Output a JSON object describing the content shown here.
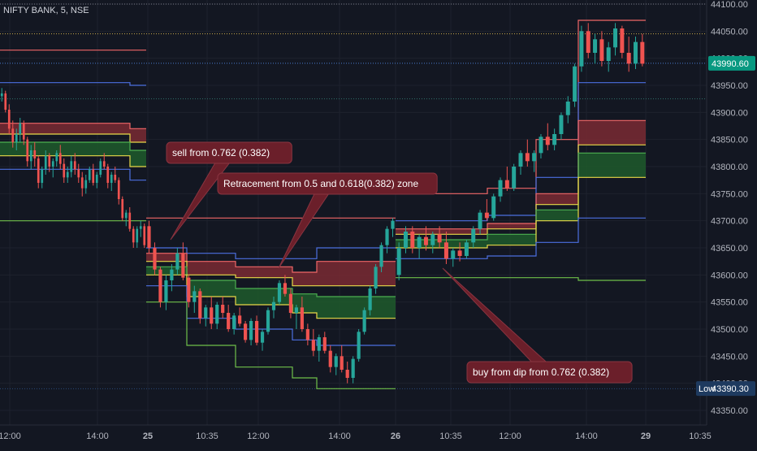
{
  "chart_data": {
    "type": "candlestick",
    "title": "NIFTY BANK, 5, NSE",
    "y_axis": {
      "range": [
        43310,
        44125
      ],
      "ticks": [
        43350,
        43400,
        43450,
        43500,
        43550,
        43600,
        43650,
        43700,
        43750,
        43800,
        43850,
        43900,
        43950,
        44000,
        44050,
        44100
      ],
      "tick_labels": [
        "43350.00",
        "43400.00",
        "43450.00",
        "43500.00",
        "43550.00",
        "43600.00",
        "43650.00",
        "43700.00",
        "43750.00",
        "43800.00",
        "43850.00",
        "43900.00",
        "43950.00",
        "44000.00",
        "44050.00",
        "44100.00"
      ],
      "position": "right"
    },
    "x_axis": {
      "tick_labels": [
        "12:00",
        "14:00",
        "25",
        "10:35",
        "12:00",
        "14:00",
        "26",
        "10:35",
        "12:00",
        "14:00",
        "29",
        "10:35"
      ],
      "bold_labels": [
        "25",
        "26",
        "29"
      ]
    },
    "price_badge": {
      "value": "43990.60",
      "color": "#089981"
    },
    "low_badge": {
      "label": "Low",
      "value": "43390.30",
      "color": "#1e3a5f"
    },
    "colors": {
      "up": "#26a69a",
      "down": "#ef5350",
      "red_zone": "#7a2a33",
      "green_zone": "#1f5a2c"
    },
    "sessions": [
      {
        "start": 0,
        "end": 180,
        "levels": {
          "top_red": null,
          "blue_hi": 43950,
          "red": 43870,
          "yellow": 43845,
          "green": 43830,
          "yellow_low": 43800,
          "blue_lo": 43775,
          "green_low": 43700
        },
        "extra_red": 44015,
        "candles": [
          [
            43930,
            43945,
            43920,
            43935
          ],
          [
            43935,
            43940,
            43900,
            43905
          ],
          [
            43905,
            43915,
            43860,
            43870
          ],
          [
            43870,
            43885,
            43835,
            43845
          ],
          [
            43845,
            43870,
            43830,
            43860
          ],
          [
            43860,
            43890,
            43845,
            43880
          ],
          [
            43880,
            43885,
            43840,
            43850
          ],
          [
            43850,
            43855,
            43800,
            43810
          ],
          [
            43810,
            43840,
            43795,
            43830
          ],
          [
            43830,
            43845,
            43800,
            43815
          ],
          [
            43815,
            43820,
            43760,
            43770
          ],
          [
            43770,
            43800,
            43760,
            43795
          ],
          [
            43795,
            43830,
            43785,
            43820
          ],
          [
            43820,
            43825,
            43790,
            43800
          ],
          [
            43800,
            43815,
            43780,
            43810
          ],
          [
            43810,
            43830,
            43800,
            43825
          ],
          [
            43825,
            43840,
            43795,
            43805
          ],
          [
            43805,
            43815,
            43770,
            43780
          ],
          [
            43780,
            43800,
            43770,
            43790
          ],
          [
            43790,
            43820,
            43780,
            43810
          ],
          [
            43810,
            43825,
            43785,
            43795
          ],
          [
            43795,
            43805,
            43770,
            43780
          ],
          [
            43780,
            43790,
            43745,
            43760
          ],
          [
            43760,
            43785,
            43750,
            43775
          ],
          [
            43775,
            43800,
            43770,
            43795
          ],
          [
            43795,
            43805,
            43765,
            43770
          ],
          [
            43770,
            43790,
            43760,
            43785
          ],
          [
            43785,
            43815,
            43780,
            43810
          ],
          [
            43810,
            43825,
            43795,
            43800
          ],
          [
            43800,
            43805,
            43760,
            43770
          ],
          [
            43770,
            43790,
            43755,
            43785
          ],
          [
            43785,
            43800,
            43770,
            43775
          ],
          [
            43775,
            43780,
            43730,
            43740
          ],
          [
            43740,
            43745,
            43700,
            43705
          ],
          [
            43705,
            43720,
            43690,
            43715
          ],
          [
            43715,
            43725,
            43680,
            43685
          ],
          [
            43685,
            43690,
            43650,
            43660
          ],
          [
            43660,
            43690,
            43650,
            43685
          ],
          [
            43685,
            43700,
            43670,
            43690
          ],
          [
            43690,
            43695,
            43650,
            43655
          ]
        ]
      },
      {
        "start": 180,
        "end": 487,
        "levels": {
          "top_red": 43705,
          "blue_hi": 43650,
          "red": 43625,
          "yellow": 43580,
          "green": 43560,
          "yellow_low": 43520,
          "blue_lo": 43470,
          "green_low": 43390
        },
        "candles": [
          [
            43690,
            43700,
            43640,
            43650
          ],
          [
            43650,
            43660,
            43600,
            43610
          ],
          [
            43610,
            43615,
            43540,
            43550
          ],
          [
            43550,
            43600,
            43535,
            43590
          ],
          [
            43590,
            43620,
            43570,
            43610
          ],
          [
            43610,
            43650,
            43600,
            43640
          ],
          [
            43640,
            43660,
            43590,
            43595
          ],
          [
            43595,
            43600,
            43540,
            43550
          ],
          [
            43550,
            43580,
            43530,
            43570
          ],
          [
            43570,
            43575,
            43510,
            43520
          ],
          [
            43520,
            43545,
            43505,
            43540
          ],
          [
            43540,
            43560,
            43500,
            43510
          ],
          [
            43510,
            43550,
            43500,
            43545
          ],
          [
            43545,
            43560,
            43520,
            43530
          ],
          [
            43530,
            43545,
            43495,
            43500
          ],
          [
            43500,
            43530,
            43490,
            43525
          ],
          [
            43525,
            43540,
            43505,
            43510
          ],
          [
            43510,
            43515,
            43475,
            43480
          ],
          [
            43480,
            43520,
            43470,
            43515
          ],
          [
            43515,
            43525,
            43470,
            43475
          ],
          [
            43475,
            43500,
            43460,
            43495
          ],
          [
            43495,
            43540,
            43490,
            43535
          ],
          [
            43535,
            43560,
            43520,
            43550
          ],
          [
            43550,
            43590,
            43545,
            43585
          ],
          [
            43585,
            43600,
            43560,
            43565
          ],
          [
            43565,
            43575,
            43520,
            43530
          ],
          [
            43530,
            43545,
            43500,
            43540
          ],
          [
            43540,
            43560,
            43495,
            43500
          ],
          [
            43500,
            43510,
            43470,
            43480
          ],
          [
            43480,
            43500,
            43450,
            43460
          ],
          [
            43460,
            43490,
            43440,
            43485
          ],
          [
            43485,
            43495,
            43455,
            43460
          ],
          [
            43460,
            43470,
            43420,
            43430
          ],
          [
            43430,
            43455,
            43415,
            43450
          ],
          [
            43450,
            43470,
            43420,
            43425
          ],
          [
            43425,
            43440,
            43400,
            43410
          ],
          [
            43410,
            43450,
            43400,
            43445
          ],
          [
            43445,
            43500,
            43440,
            43495
          ],
          [
            43495,
            43540,
            43490,
            43535
          ],
          [
            43535,
            43580,
            43525,
            43575
          ],
          [
            43575,
            43620,
            43565,
            43615
          ],
          [
            43615,
            43660,
            43605,
            43655
          ],
          [
            43655,
            43690,
            43640,
            43685
          ],
          [
            43685,
            43705,
            43670,
            43700
          ]
        ]
      },
      {
        "start": 487,
        "end": 795,
        "levels": {
          "top_red": 44070,
          "blue_hi": 43955,
          "red": 43885,
          "yellow": 43840,
          "green": 43825,
          "yellow_low": 43780,
          "blue_lo": 43705,
          "green_low": 43590
        },
        "rising": [
          {
            "x": 487,
            "top_red": 43750,
            "blue_hi": 43700,
            "red": 43685,
            "yellow": 43675,
            "green": 43665,
            "yellow_low": 43650,
            "blue_lo": 43630,
            "green_low": 43595
          },
          {
            "x": 600,
            "top_red": 43760,
            "blue_hi": 43710,
            "red": 43695,
            "yellow": 43685,
            "green": 43675,
            "yellow_low": 43655,
            "blue_lo": 43635,
            "green_low": 43595
          },
          {
            "x": 660,
            "top_red": 43850,
            "blue_hi": 43780,
            "red": 43750,
            "yellow": 43730,
            "green": 43720,
            "yellow_low": 43700,
            "blue_lo": 43660,
            "green_low": 43595
          },
          {
            "x": 712,
            "top_red": 44070,
            "blue_hi": 43955,
            "red": 43885,
            "yellow": 43840,
            "green": 43825,
            "yellow_low": 43780,
            "blue_lo": 43705,
            "green_low": 43590
          }
        ],
        "candles": [
          [
            43600,
            43660,
            43590,
            43650
          ],
          [
            43650,
            43690,
            43640,
            43680
          ],
          [
            43680,
            43690,
            43640,
            43650
          ],
          [
            43650,
            43675,
            43630,
            43670
          ],
          [
            43670,
            43690,
            43645,
            43655
          ],
          [
            43655,
            43680,
            43640,
            43675
          ],
          [
            43675,
            43690,
            43650,
            43660
          ],
          [
            43660,
            43680,
            43620,
            43630
          ],
          [
            43630,
            43650,
            43615,
            43645
          ],
          [
            43645,
            43660,
            43625,
            43635
          ],
          [
            43635,
            43665,
            43630,
            43660
          ],
          [
            43660,
            43690,
            43650,
            43685
          ],
          [
            43685,
            43720,
            43675,
            43715
          ],
          [
            43715,
            43740,
            43700,
            43705
          ],
          [
            43705,
            43750,
            43700,
            43745
          ],
          [
            43745,
            43780,
            43735,
            43775
          ],
          [
            43775,
            43800,
            43755,
            43760
          ],
          [
            43760,
            43805,
            43755,
            43800
          ],
          [
            43800,
            43830,
            43785,
            43825
          ],
          [
            43825,
            43850,
            43800,
            43810
          ],
          [
            43810,
            43830,
            43790,
            43825
          ],
          [
            43825,
            43860,
            43815,
            43855
          ],
          [
            43855,
            43880,
            43830,
            43840
          ],
          [
            43840,
            43870,
            43830,
            43860
          ],
          [
            43860,
            43900,
            43850,
            43895
          ],
          [
            43895,
            43930,
            43880,
            43920
          ],
          [
            43920,
            43990,
            43910,
            43985
          ],
          [
            43985,
            44060,
            43975,
            44050
          ],
          [
            44050,
            44065,
            44000,
            44010
          ],
          [
            44010,
            44045,
            43990,
            44035
          ],
          [
            44035,
            44050,
            43985,
            43995
          ],
          [
            43995,
            44030,
            43975,
            44020
          ],
          [
            44020,
            44065,
            44005,
            44055
          ],
          [
            44055,
            44060,
            44000,
            44010
          ],
          [
            44010,
            44040,
            43975,
            43990
          ],
          [
            43990,
            44040,
            43980,
            44030
          ],
          [
            44030,
            44045,
            43985,
            43990
          ]
        ]
      }
    ],
    "horizontal_rays": [
      {
        "price": 44100,
        "color": "#787b86",
        "style": "dotted"
      },
      {
        "price": 44045,
        "color": "#c8a94a",
        "style": "dotted"
      },
      {
        "price": 43990.6,
        "color": "#4a7bd0",
        "style": "dotted"
      },
      {
        "price": 43925,
        "color": "#2f6f6a",
        "style": "dotted"
      },
      {
        "price": 43390,
        "color": "#2a4a7a",
        "style": "dotted"
      }
    ],
    "annotations": [
      {
        "text": "sell from 0.762 (0.382)",
        "box_at": [
          205,
          175
        ],
        "point_to": [
          210,
          295
        ]
      },
      {
        "text": "Retracement from 0.5 and 0.618(0.382) zone",
        "box_at": [
          268,
          213
        ],
        "point_to": [
          343,
          330
        ]
      },
      {
        "text": "buy from dip from 0.762 (0.382)",
        "box_at": [
          575,
          445
        ],
        "point_to": [
          545,
          330
        ]
      }
    ]
  }
}
